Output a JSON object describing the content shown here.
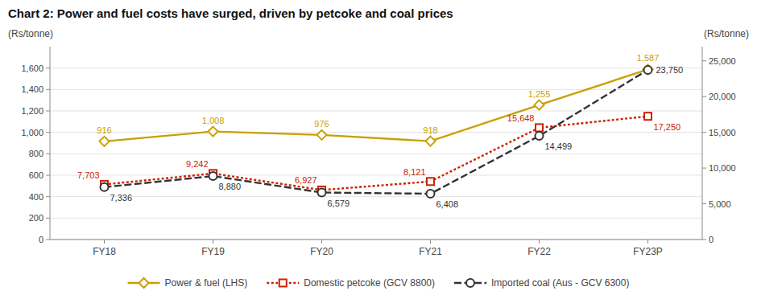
{
  "chart_data": {
    "type": "line",
    "title": "Chart 2: Power and fuel costs have surged, driven by petcoke and coal prices",
    "categories": [
      "FY18",
      "FY19",
      "FY20",
      "FY21",
      "FY22",
      "FY23P"
    ],
    "series": [
      {
        "name": "Power & fuel (LHS)",
        "color": "#C8A000",
        "marker": "diamond",
        "line_style": "solid",
        "values": [
          916,
          1008,
          976,
          918,
          1255,
          1587
        ],
        "value_labels": [
          "916",
          "1,008",
          "976",
          "918",
          "1,255",
          "1,587"
        ]
      },
      {
        "name": "Domestic petcoke (GCV 8800)",
        "color": "#CC2200",
        "marker": "square",
        "line_style": "dotted",
        "axis": "y2",
        "values": [
          7703,
          9242,
          6927,
          8121,
          15648,
          17250
        ],
        "value_labels": [
          "7,703",
          "9,242",
          "6,927",
          "8,121",
          "15,648",
          "17,250"
        ]
      },
      {
        "name": "Imported coal (Aus - GCV 6300)",
        "color": "#333333",
        "marker": "circle",
        "line_style": "dashed",
        "axis": "y2",
        "values": [
          7336,
          8880,
          6579,
          6408,
          14499,
          23750
        ],
        "value_labels": [
          "7,336",
          "8,880",
          "6,579",
          "6,408",
          "14,499",
          "23,750"
        ]
      }
    ],
    "ylabel": "(Rs/tonne)",
    "y2label": "(Rs/tonne)",
    "ylim": [
      0,
      1800
    ],
    "yticks": [
      0,
      200,
      400,
      600,
      800,
      {
        "value": 1000,
        "label": "1,000"
      },
      {
        "value": 1200,
        "label": "1,200"
      },
      {
        "value": 1400,
        "label": "1,400"
      },
      {
        "value": 1600,
        "label": "1,600"
      }
    ],
    "y2lim": [
      0,
      27000
    ],
    "y2ticks": [
      0,
      {
        "value": 5000,
        "label": "5,000"
      },
      {
        "value": 10000,
        "label": "10,000"
      },
      {
        "value": 15000,
        "label": "15,000"
      },
      {
        "value": 20000,
        "label": "20,000"
      },
      {
        "value": 25000,
        "label": "25,000"
      }
    ],
    "grid": true,
    "legend": "bottom",
    "data_labels": true
  }
}
